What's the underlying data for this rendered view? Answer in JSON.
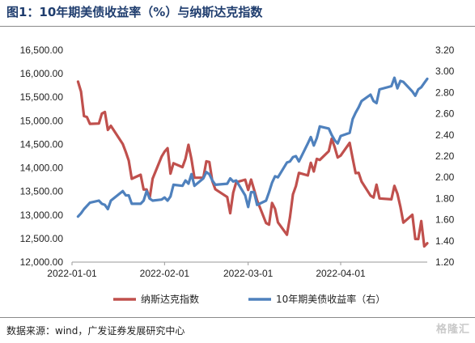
{
  "title": "图1：10年期美债收益率（%）与纳斯达克指数",
  "source": "数据来源：wind，广发证券发展研究中心",
  "watermark": "格隆汇",
  "chart_data": {
    "type": "line",
    "x_start": "2022-01-01",
    "x_end": "2022-04-30",
    "x_ticks": [
      {
        "date": "2022-01-01",
        "label": "2022-01-01"
      },
      {
        "date": "2022-02-01",
        "label": "2022-02-01"
      },
      {
        "date": "2022-03-01",
        "label": "2022-03-01"
      },
      {
        "date": "2022-04-01",
        "label": "2022-04-01"
      }
    ],
    "y_left": {
      "min": 12000,
      "max": 16500,
      "ticks": [
        {
          "value": 12000,
          "label": "12,000.00"
        },
        {
          "value": 12500,
          "label": "12,500.00"
        },
        {
          "value": 13000,
          "label": "13,000.00"
        },
        {
          "value": 13500,
          "label": "13,500.00"
        },
        {
          "value": 14000,
          "label": "14,000.00"
        },
        {
          "value": 14500,
          "label": "14,500.00"
        },
        {
          "value": 15000,
          "label": "15,000.00"
        },
        {
          "value": 15500,
          "label": "15,500.00"
        },
        {
          "value": 16000,
          "label": "16,000.00"
        },
        {
          "value": 16500,
          "label": "16,500.00"
        }
      ]
    },
    "y_right": {
      "min": 1.2,
      "max": 3.2,
      "ticks": [
        {
          "value": 1.2,
          "label": "1.20"
        },
        {
          "value": 1.4,
          "label": "1.40"
        },
        {
          "value": 1.6,
          "label": "1.60"
        },
        {
          "value": 1.8,
          "label": "1.80"
        },
        {
          "value": 2.0,
          "label": "2.00"
        },
        {
          "value": 2.2,
          "label": "2.20"
        },
        {
          "value": 2.4,
          "label": "2.40"
        },
        {
          "value": 2.6,
          "label": "2.60"
        },
        {
          "value": 2.8,
          "label": "2.80"
        },
        {
          "value": 3.0,
          "label": "3.00"
        },
        {
          "value": 3.2,
          "label": "3.20"
        }
      ]
    },
    "legend_position": "bottom",
    "series": [
      {
        "name": "纳斯达克指数",
        "axis": "left",
        "color": "#c0504d",
        "points": [
          [
            "2022-01-03",
            15832
          ],
          [
            "2022-01-04",
            15623
          ],
          [
            "2022-01-05",
            15100
          ],
          [
            "2022-01-06",
            15081
          ],
          [
            "2022-01-07",
            14936
          ],
          [
            "2022-01-10",
            14943
          ],
          [
            "2022-01-11",
            15153
          ],
          [
            "2022-01-12",
            15188
          ],
          [
            "2022-01-13",
            14806
          ],
          [
            "2022-01-14",
            14894
          ],
          [
            "2022-01-18",
            14507
          ],
          [
            "2022-01-19",
            14341
          ],
          [
            "2022-01-20",
            14155
          ],
          [
            "2022-01-21",
            13769
          ],
          [
            "2022-01-24",
            13855
          ],
          [
            "2022-01-25",
            13540
          ],
          [
            "2022-01-26",
            13542
          ],
          [
            "2022-01-27",
            13353
          ],
          [
            "2022-01-28",
            13771
          ],
          [
            "2022-01-31",
            14240
          ],
          [
            "2022-02-01",
            14346
          ],
          [
            "2022-02-02",
            14418
          ],
          [
            "2022-02-03",
            13879
          ],
          [
            "2022-02-04",
            14099
          ],
          [
            "2022-02-07",
            14016
          ],
          [
            "2022-02-08",
            14194
          ],
          [
            "2022-02-09",
            14491
          ],
          [
            "2022-02-10",
            14186
          ],
          [
            "2022-02-11",
            13791
          ],
          [
            "2022-02-14",
            13791
          ],
          [
            "2022-02-15",
            14140
          ],
          [
            "2022-02-16",
            14124
          ],
          [
            "2022-02-17",
            13717
          ],
          [
            "2022-02-18",
            13548
          ],
          [
            "2022-02-22",
            13381
          ],
          [
            "2022-02-23",
            13038
          ],
          [
            "2022-02-24",
            13474
          ],
          [
            "2022-02-25",
            13695
          ],
          [
            "2022-02-28",
            13751
          ],
          [
            "2022-03-01",
            13532
          ],
          [
            "2022-03-02",
            13752
          ],
          [
            "2022-03-03",
            13538
          ],
          [
            "2022-03-04",
            13313
          ],
          [
            "2022-03-07",
            12830
          ],
          [
            "2022-03-08",
            12796
          ],
          [
            "2022-03-09",
            13256
          ],
          [
            "2022-03-10",
            13130
          ],
          [
            "2022-03-11",
            12843
          ],
          [
            "2022-03-14",
            12581
          ],
          [
            "2022-03-15",
            12948
          ],
          [
            "2022-03-16",
            13437
          ],
          [
            "2022-03-17",
            13614
          ],
          [
            "2022-03-18",
            13894
          ],
          [
            "2022-03-21",
            13839
          ],
          [
            "2022-03-22",
            14109
          ],
          [
            "2022-03-23",
            13923
          ],
          [
            "2022-03-24",
            14191
          ],
          [
            "2022-03-25",
            14169
          ],
          [
            "2022-03-28",
            14354
          ],
          [
            "2022-03-29",
            14620
          ],
          [
            "2022-03-30",
            14442
          ],
          [
            "2022-03-31",
            14221
          ],
          [
            "2022-04-01",
            14262
          ],
          [
            "2022-04-04",
            14532
          ],
          [
            "2022-04-05",
            14204
          ],
          [
            "2022-04-06",
            13888
          ],
          [
            "2022-04-07",
            13897
          ],
          [
            "2022-04-08",
            13711
          ],
          [
            "2022-04-11",
            13411
          ],
          [
            "2022-04-12",
            13371
          ],
          [
            "2022-04-13",
            13643
          ],
          [
            "2022-04-14",
            13351
          ],
          [
            "2022-04-18",
            13332
          ],
          [
            "2022-04-19",
            13619
          ],
          [
            "2022-04-20",
            13453
          ],
          [
            "2022-04-21",
            13174
          ],
          [
            "2022-04-22",
            12839
          ],
          [
            "2022-04-25",
            13004
          ],
          [
            "2022-04-26",
            12491
          ],
          [
            "2022-04-27",
            12489
          ],
          [
            "2022-04-28",
            12872
          ],
          [
            "2022-04-29",
            12335
          ],
          [
            "2022-04-30",
            12400
          ]
        ]
      },
      {
        "name": "10年期美债收益率（右）",
        "axis": "right",
        "color": "#4f81bd",
        "points": [
          [
            "2022-01-03",
            1.63
          ],
          [
            "2022-01-04",
            1.66
          ],
          [
            "2022-01-05",
            1.7
          ],
          [
            "2022-01-06",
            1.73
          ],
          [
            "2022-01-07",
            1.76
          ],
          [
            "2022-01-10",
            1.78
          ],
          [
            "2022-01-11",
            1.75
          ],
          [
            "2022-01-12",
            1.74
          ],
          [
            "2022-01-13",
            1.7
          ],
          [
            "2022-01-14",
            1.78
          ],
          [
            "2022-01-18",
            1.87
          ],
          [
            "2022-01-19",
            1.83
          ],
          [
            "2022-01-20",
            1.83
          ],
          [
            "2022-01-21",
            1.75
          ],
          [
            "2022-01-24",
            1.75
          ],
          [
            "2022-01-25",
            1.78
          ],
          [
            "2022-01-26",
            1.87
          ],
          [
            "2022-01-27",
            1.8
          ],
          [
            "2022-01-28",
            1.78
          ],
          [
            "2022-01-31",
            1.79
          ],
          [
            "2022-02-01",
            1.81
          ],
          [
            "2022-02-02",
            1.78
          ],
          [
            "2022-02-03",
            1.82
          ],
          [
            "2022-02-04",
            1.93
          ],
          [
            "2022-02-07",
            1.92
          ],
          [
            "2022-02-08",
            1.97
          ],
          [
            "2022-02-09",
            1.94
          ],
          [
            "2022-02-10",
            2.03
          ],
          [
            "2022-02-11",
            1.92
          ],
          [
            "2022-02-14",
            1.99
          ],
          [
            "2022-02-15",
            2.05
          ],
          [
            "2022-02-16",
            2.03
          ],
          [
            "2022-02-17",
            1.97
          ],
          [
            "2022-02-18",
            1.93
          ],
          [
            "2022-02-22",
            1.94
          ],
          [
            "2022-02-23",
            1.99
          ],
          [
            "2022-02-24",
            1.96
          ],
          [
            "2022-02-25",
            1.97
          ],
          [
            "2022-02-28",
            1.83
          ],
          [
            "2022-03-01",
            1.72
          ],
          [
            "2022-03-02",
            1.86
          ],
          [
            "2022-03-03",
            1.86
          ],
          [
            "2022-03-04",
            1.74
          ],
          [
            "2022-03-07",
            1.78
          ],
          [
            "2022-03-08",
            1.86
          ],
          [
            "2022-03-09",
            1.95
          ],
          [
            "2022-03-10",
            2.01
          ],
          [
            "2022-03-11",
            2.0
          ],
          [
            "2022-03-14",
            2.14
          ],
          [
            "2022-03-15",
            2.15
          ],
          [
            "2022-03-16",
            2.19
          ],
          [
            "2022-03-17",
            2.2
          ],
          [
            "2022-03-18",
            2.15
          ],
          [
            "2022-03-21",
            2.32
          ],
          [
            "2022-03-22",
            2.38
          ],
          [
            "2022-03-23",
            2.3
          ],
          [
            "2022-03-24",
            2.37
          ],
          [
            "2022-03-25",
            2.48
          ],
          [
            "2022-03-28",
            2.46
          ],
          [
            "2022-03-29",
            2.4
          ],
          [
            "2022-03-30",
            2.35
          ],
          [
            "2022-03-31",
            2.32
          ],
          [
            "2022-04-01",
            2.39
          ],
          [
            "2022-04-04",
            2.42
          ],
          [
            "2022-04-05",
            2.55
          ],
          [
            "2022-04-06",
            2.61
          ],
          [
            "2022-04-07",
            2.66
          ],
          [
            "2022-04-08",
            2.72
          ],
          [
            "2022-04-11",
            2.78
          ],
          [
            "2022-04-12",
            2.72
          ],
          [
            "2022-04-13",
            2.7
          ],
          [
            "2022-04-14",
            2.83
          ],
          [
            "2022-04-18",
            2.86
          ],
          [
            "2022-04-19",
            2.94
          ],
          [
            "2022-04-20",
            2.84
          ],
          [
            "2022-04-21",
            2.91
          ],
          [
            "2022-04-22",
            2.9
          ],
          [
            "2022-04-25",
            2.81
          ],
          [
            "2022-04-26",
            2.77
          ],
          [
            "2022-04-27",
            2.83
          ],
          [
            "2022-04-28",
            2.85
          ],
          [
            "2022-04-29",
            2.89
          ],
          [
            "2022-04-30",
            2.93
          ]
        ]
      }
    ]
  }
}
